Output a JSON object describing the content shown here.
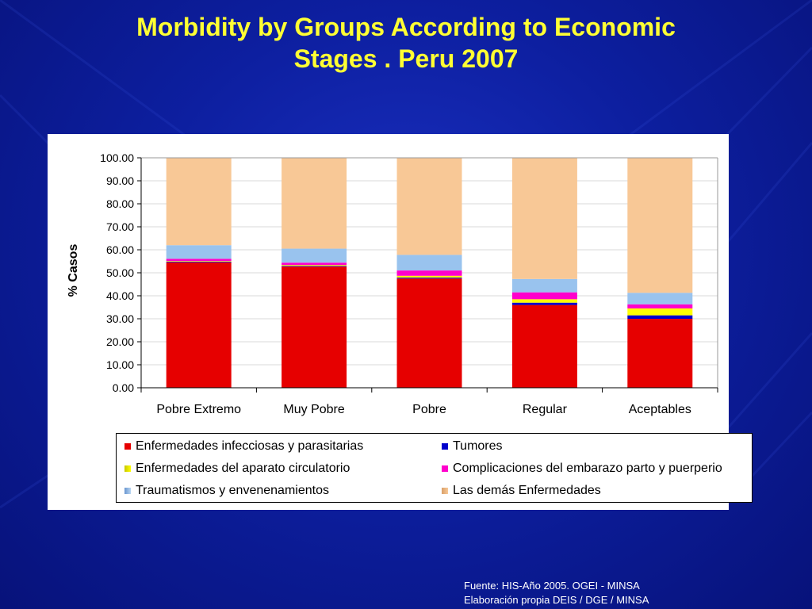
{
  "slide": {
    "title_line1": "Morbidity by Groups According to Economic",
    "title_line2": "Stages . Peru 2007",
    "source_line1": "Fuente: HIS-Año 2005. OGEI - MINSA",
    "source_line2": "Elaboración propia DEIS / DGE / MINSA"
  },
  "chart_data": {
    "type": "bar",
    "stacked": true,
    "title": "",
    "xlabel": "",
    "ylabel": "% Casos",
    "ylim": [
      0,
      100
    ],
    "yticks": [
      "0.00",
      "10.00",
      "20.00",
      "30.00",
      "40.00",
      "50.00",
      "60.00",
      "70.00",
      "80.00",
      "90.00",
      "100.00"
    ],
    "categories": [
      "Pobre Extremo",
      "Muy Pobre",
      "Pobre",
      "Regular",
      "Aceptables"
    ],
    "series": [
      {
        "name": "Enfermedades infecciosas y parasitarias",
        "color": "#e60000",
        "values": [
          54.5,
          52.7,
          47.5,
          36.0,
          30.0
        ]
      },
      {
        "name": "Tumores",
        "color": "#0000cc",
        "values": [
          0.3,
          0.3,
          0.4,
          1.0,
          1.5
        ]
      },
      {
        "name": "Enfermedades del aparato circulatorio",
        "color": "#ffff00",
        "values": [
          0.3,
          0.4,
          0.8,
          1.5,
          3.0
        ]
      },
      {
        "name": "Complicaciones del embarazo parto y puerperio",
        "color": "#ff00cc",
        "values": [
          1.0,
          1.0,
          2.3,
          3.0,
          1.8
        ]
      },
      {
        "name": "Traumatismos y envenenamientos",
        "color": "#99c3ee",
        "values": [
          5.9,
          6.1,
          6.8,
          5.8,
          5.0
        ]
      },
      {
        "name": "Las demás Enfermedades",
        "color": "#f8c896",
        "values": [
          38.0,
          39.5,
          42.2,
          52.7,
          58.7
        ]
      }
    ],
    "grid": true,
    "legend_position": "bottom"
  }
}
